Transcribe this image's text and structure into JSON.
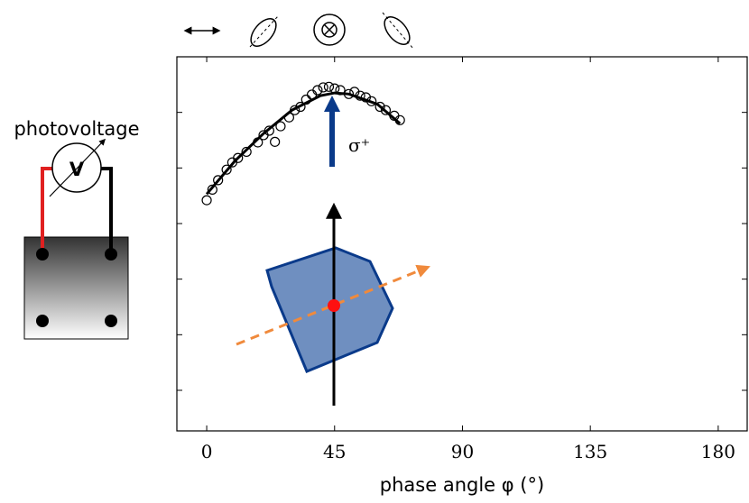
{
  "chart_data": {
    "type": "scatter",
    "xlabel": "phase angle φ (°)",
    "annotation": "σ⁺",
    "circuit_label": "photovoltage",
    "meter_label": "V",
    "xlim": [
      -10.5,
      190.2
    ],
    "xticks": [
      0,
      45,
      90,
      135,
      180
    ],
    "ylim": [
      0.27,
      7.0
    ],
    "yticks": [
      1,
      2,
      3,
      4,
      5,
      6
    ],
    "x": [
      0,
      2,
      4,
      7,
      9,
      11,
      14,
      18,
      20,
      22,
      24,
      26,
      29,
      31,
      33,
      35,
      37,
      39,
      41,
      43,
      45,
      47,
      50,
      52,
      54,
      56,
      58,
      61,
      63,
      66,
      68
    ],
    "values": [
      4.42,
      4.61,
      4.78,
      4.97,
      5.1,
      5.18,
      5.29,
      5.46,
      5.59,
      5.67,
      5.47,
      5.75,
      5.91,
      6.04,
      6.1,
      6.23,
      6.32,
      6.4,
      6.45,
      6.46,
      6.43,
      6.4,
      6.33,
      6.37,
      6.3,
      6.27,
      6.2,
      6.1,
      6.04,
      5.94,
      5.86
    ],
    "fit": {
      "x": [
        0,
        10,
        20,
        30,
        40,
        45,
        50,
        60,
        68
      ],
      "values": [
        4.53,
        5.13,
        5.62,
        6.04,
        6.3,
        6.35,
        6.33,
        6.15,
        5.8
      ],
      "color": "#000000"
    }
  }
}
